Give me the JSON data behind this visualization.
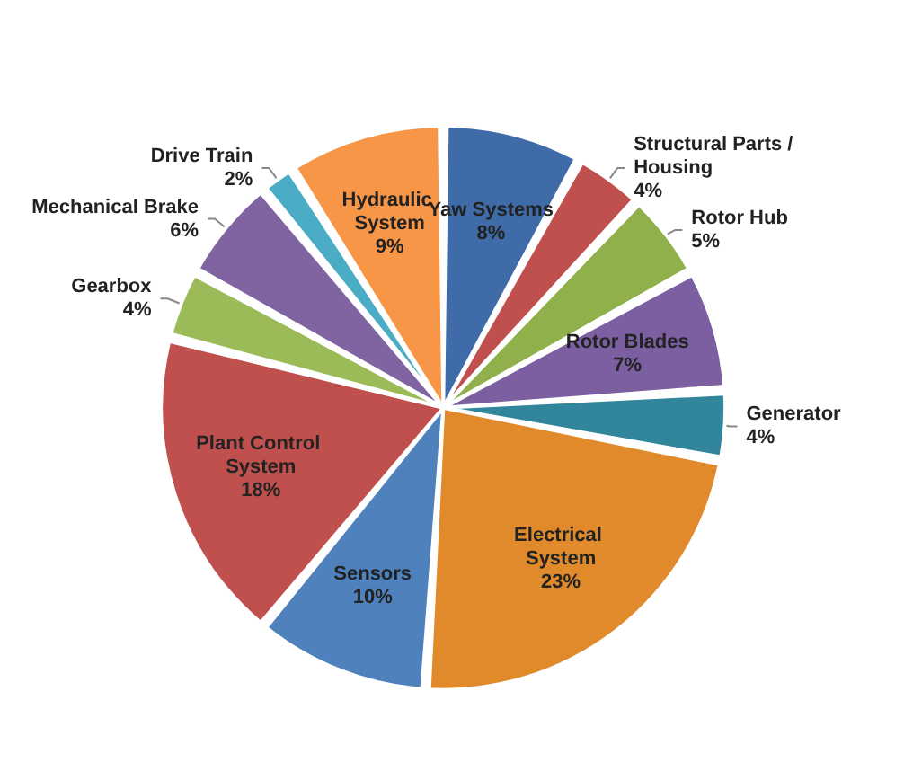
{
  "chart_data": {
    "type": "pie",
    "categories": [
      "Yaw Systems",
      "Structural Parts / Housing",
      "Rotor Hub",
      "Rotor Blades",
      "Generator",
      "Electrical System",
      "Sensors",
      "Plant Control System",
      "Gearbox",
      "Mechanical Brake",
      "Drive Train",
      "Hydraulic System"
    ],
    "values": [
      8,
      4,
      5,
      7,
      4,
      23,
      10,
      18,
      4,
      6,
      2,
      9
    ],
    "value_labels": [
      "8%",
      "4%",
      "5%",
      "7%",
      "4%",
      "23%",
      "10%",
      "18%",
      "4%",
      "6%",
      "2%",
      "9%"
    ],
    "colors": [
      "#3f6ba8",
      "#c0504d",
      "#8fb04a",
      "#7b5fa0",
      "#31869b",
      "#e08a2c",
      "#4f81bd",
      "#c0504d",
      "#9bbb59",
      "#8064a2",
      "#4bacc6",
      "#f79646"
    ],
    "legend": false
  }
}
